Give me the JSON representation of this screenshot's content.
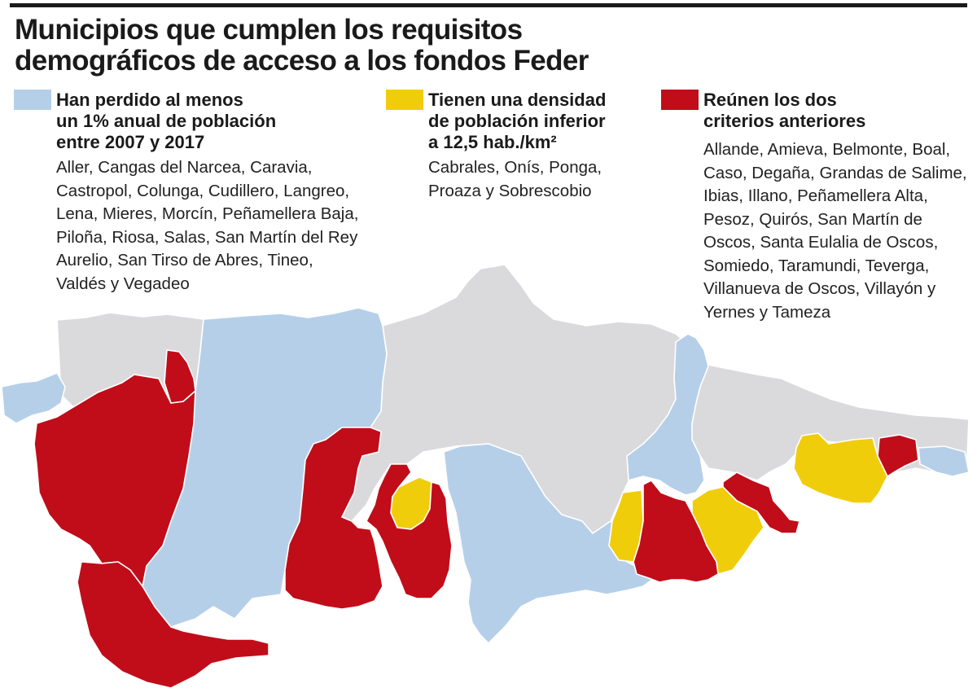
{
  "title_lines": [
    "Municipios que cumplen los requisitos",
    "demográficos de acceso a los fondos Feder"
  ],
  "colors": {
    "loss": "#b6cfe9",
    "density": "#f0cd0a",
    "both": "#c00d19",
    "other": "#dadadd"
  },
  "legend": [
    {
      "category": "loss",
      "heading_lines": [
        "Han perdido al menos",
        "un 1% anual de población",
        "entre 2007 y 2017"
      ],
      "list_lines": [
        "Aller, Cangas del Narcea, Caravia,",
        "Castropol, Colunga, Cudillero, Langreo,",
        "Lena, Mieres, Morcín, Peñamellera Baja,",
        "Piloña, Riosa, Salas, San Martín del Rey",
        "Aurelio, San Tirso de Abres, Tineo,",
        "Valdés y Vegadeo"
      ]
    },
    {
      "category": "density",
      "heading_lines": [
        "Tienen una densidad",
        "de población inferior",
        "a 12,5 hab./km²"
      ],
      "list_lines": [
        "Cabrales, Onís, Ponga,",
        "Proaza y Sobrescobio"
      ]
    },
    {
      "category": "both",
      "heading_lines": [
        "Reúnen los dos",
        "criterios anteriores"
      ],
      "list_lines": [
        "Allande, Amieva, Belmonte, Boal,",
        "Caso, Degaña, Grandas de Salime,",
        "Ibias, Illano, Peñamellera Alta,",
        "Pesoz, Quirós, San Martín de",
        "Oscos, Santa Eulalia de Oscos,",
        "Somiedo, Taramundi, Teverga,",
        "Villanueva de Oscos, Villayón y",
        "Yernes y Tameza"
      ]
    }
  ]
}
